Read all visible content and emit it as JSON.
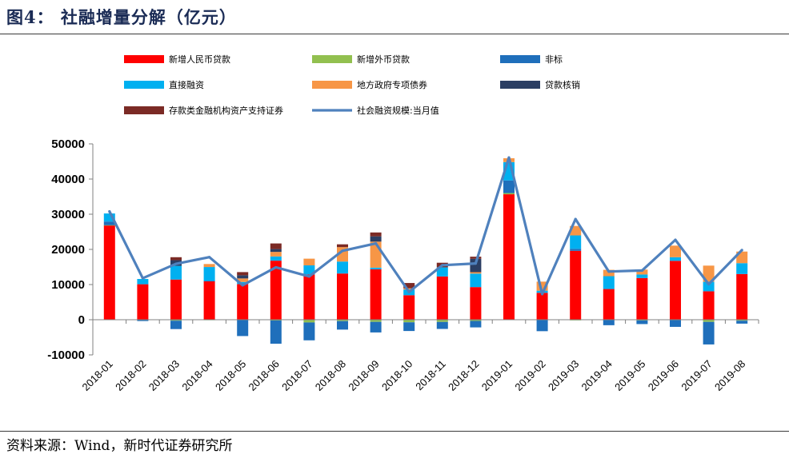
{
  "header": {
    "title": "图4： 社融增量分解（亿元）"
  },
  "footer": {
    "source": "资料来源：Wind，新时代证券研究所"
  },
  "chart_data": {
    "type": "bar",
    "stacked": true,
    "title": "",
    "xlabel": "",
    "ylabel": "",
    "ylim": [
      -10000,
      50000
    ],
    "yticks": [
      -10000,
      0,
      10000,
      20000,
      30000,
      40000,
      50000
    ],
    "grid": false,
    "legend_position": "top",
    "categories": [
      "2018-01",
      "2018-02",
      "2018-03",
      "2018-04",
      "2018-05",
      "2018-06",
      "2018-07",
      "2018-08",
      "2018-09",
      "2018-10",
      "2018-11",
      "2018-12",
      "2019-01",
      "2019-02",
      "2019-03",
      "2019-04",
      "2019-05",
      "2019-06",
      "2019-07",
      "2019-08"
    ],
    "series": [
      {
        "name": "新增人民币贷款",
        "color": "#ff0000",
        "values": [
          26850,
          10089,
          11425,
          10987,
          10140,
          16787,
          12861,
          13140,
          14331,
          6970,
          12302,
          9281,
          35668,
          7641,
          19584,
          8733,
          11855,
          16740,
          8086,
          13001
        ]
      },
      {
        "name": "新增外币贷款",
        "color": "#92c04f",
        "values": [
          35,
          -74,
          -278,
          -74,
          -4,
          -218,
          -778,
          -389,
          -605,
          -737,
          -627,
          -342,
          345,
          -28,
          -187,
          -102,
          -206,
          -120,
          -611,
          -282
        ]
      },
      {
        "name": "非标",
        "color": "#1f6fbb",
        "values": [
          1030,
          -300,
          -2380,
          50,
          -4640,
          -6600,
          -5080,
          -2420,
          -3010,
          -2470,
          -1990,
          -1840,
          3600,
          -3230,
          590,
          -1460,
          -1030,
          -1910,
          -6420,
          -830
        ]
      },
      {
        "name": "直接融资",
        "color": "#00b0f0",
        "values": [
          2300,
          1500,
          3900,
          3950,
          600,
          1200,
          2600,
          3400,
          480,
          1630,
          2600,
          3840,
          5200,
          620,
          3800,
          3650,
          1000,
          1030,
          2700,
          3080
        ]
      },
      {
        "name": "地方政府专项债券",
        "color": "#f79646",
        "values": [
          0,
          0,
          0,
          850,
          1000,
          1300,
          1900,
          4100,
          7400,
          340,
          0,
          400,
          1100,
          2570,
          2690,
          1800,
          1400,
          3300,
          4600,
          3300
        ]
      },
      {
        "name": "贷款核销",
        "color": "#2b3e63",
        "values": [
          0,
          0,
          1600,
          0,
          900,
          800,
          0,
          0,
          1500,
          0,
          0,
          3800,
          0,
          0,
          0,
          0,
          0,
          0,
          0,
          0
        ]
      },
      {
        "name": "存款类金融机构资产支持证券",
        "color": "#7b2a25",
        "values": [
          0,
          0,
          850,
          0,
          900,
          1600,
          0,
          800,
          1100,
          1500,
          1300,
          600,
          0,
          0,
          0,
          0,
          0,
          0,
          0,
          0
        ]
      }
    ],
    "line": {
      "name": "社会融资规模:当月值",
      "color": "#4f81bd",
      "values": [
        30800,
        11800,
        15900,
        17800,
        9800,
        14900,
        12300,
        19600,
        21700,
        7900,
        15500,
        16000,
        46100,
        7300,
        28600,
        13700,
        14000,
        22700,
        10100,
        19800
      ]
    }
  }
}
